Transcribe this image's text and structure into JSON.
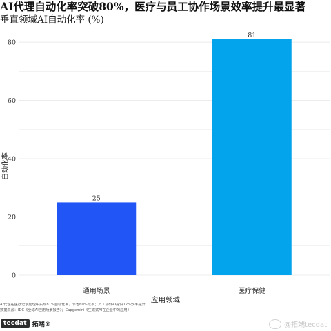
{
  "chart_data": {
    "type": "bar",
    "title": "AI代理自动化率突破80%，医疗与员工协作场景效率提升最显著",
    "subtitle": "垂直领域AI自动化率 (%)",
    "xlabel": "应用领域",
    "ylabel": "自动化率",
    "categories": [
      "通用场景",
      "医疗保健"
    ],
    "values": [
      25,
      81
    ],
    "data_labels": [
      "25",
      "81"
    ],
    "ylim": [
      0,
      85
    ],
    "yticks": [
      0,
      20,
      40,
      60,
      80
    ],
    "ytick_labels": [
      "0",
      "20",
      "40",
      "60",
      "80"
    ],
    "grid": true,
    "legend": "none",
    "colors": [
      "#2255f5",
      "#03a4ec"
    ]
  },
  "footer": {
    "notes": [
      "AI代理在医疗记录处理中实现81%自动化率，节省60%成本；员工协作AI提供12%效率提升",
      "数据来源：IDC《全球AI应用场景报告》；Capgemini《生成式AI在企业中的应用》"
    ],
    "logo": "tecdat",
    "brand": "拓端®",
    "watermark": "@拓端tecdat"
  },
  "colors": {
    "grid": "#e6e6e6",
    "text": "#222222"
  }
}
